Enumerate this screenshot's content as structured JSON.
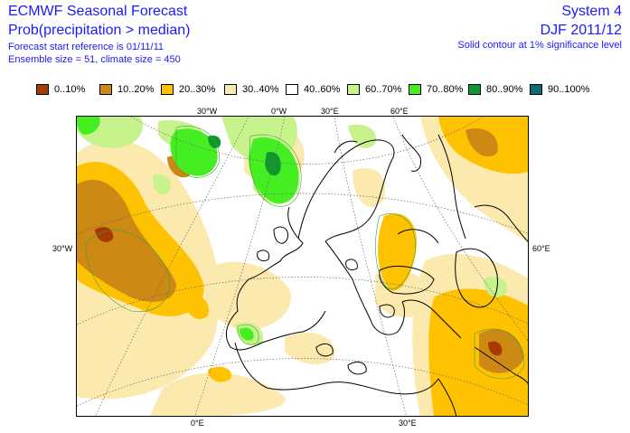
{
  "header": {
    "title": "ECMWF Seasonal Forecast",
    "subtitle": "Prob(precipitation > median)",
    "start_reference": "Forecast start reference is 01/11/11",
    "ensemble": "Ensemble size = 51, climate size = 450",
    "system": "System 4",
    "period": "DJF 2011/12",
    "contour_note": "Solid contour at 1% significance level"
  },
  "legend": {
    "items": [
      {
        "label": "0..10%",
        "color": "#a63a00"
      },
      {
        "label": "10..20%",
        "color": "#cc8a14"
      },
      {
        "label": "20..30%",
        "color": "#ffc200"
      },
      {
        "label": "30..40%",
        "color": "#fce9ae"
      },
      {
        "label": "40..60%",
        "color": "#ffffff"
      },
      {
        "label": "60..70%",
        "color": "#c8f28c"
      },
      {
        "label": "70..80%",
        "color": "#45ee20"
      },
      {
        "label": "80..90%",
        "color": "#10982e"
      },
      {
        "label": "90..100%",
        "color": "#0a6a78"
      }
    ]
  },
  "map": {
    "ticks_top": [
      "30°W",
      "0°W",
      "30°E",
      "60°E"
    ],
    "ticks_bottom": [
      "0°E",
      "30°E"
    ],
    "tick_left": "30°W",
    "tick_right": "60°E"
  }
}
